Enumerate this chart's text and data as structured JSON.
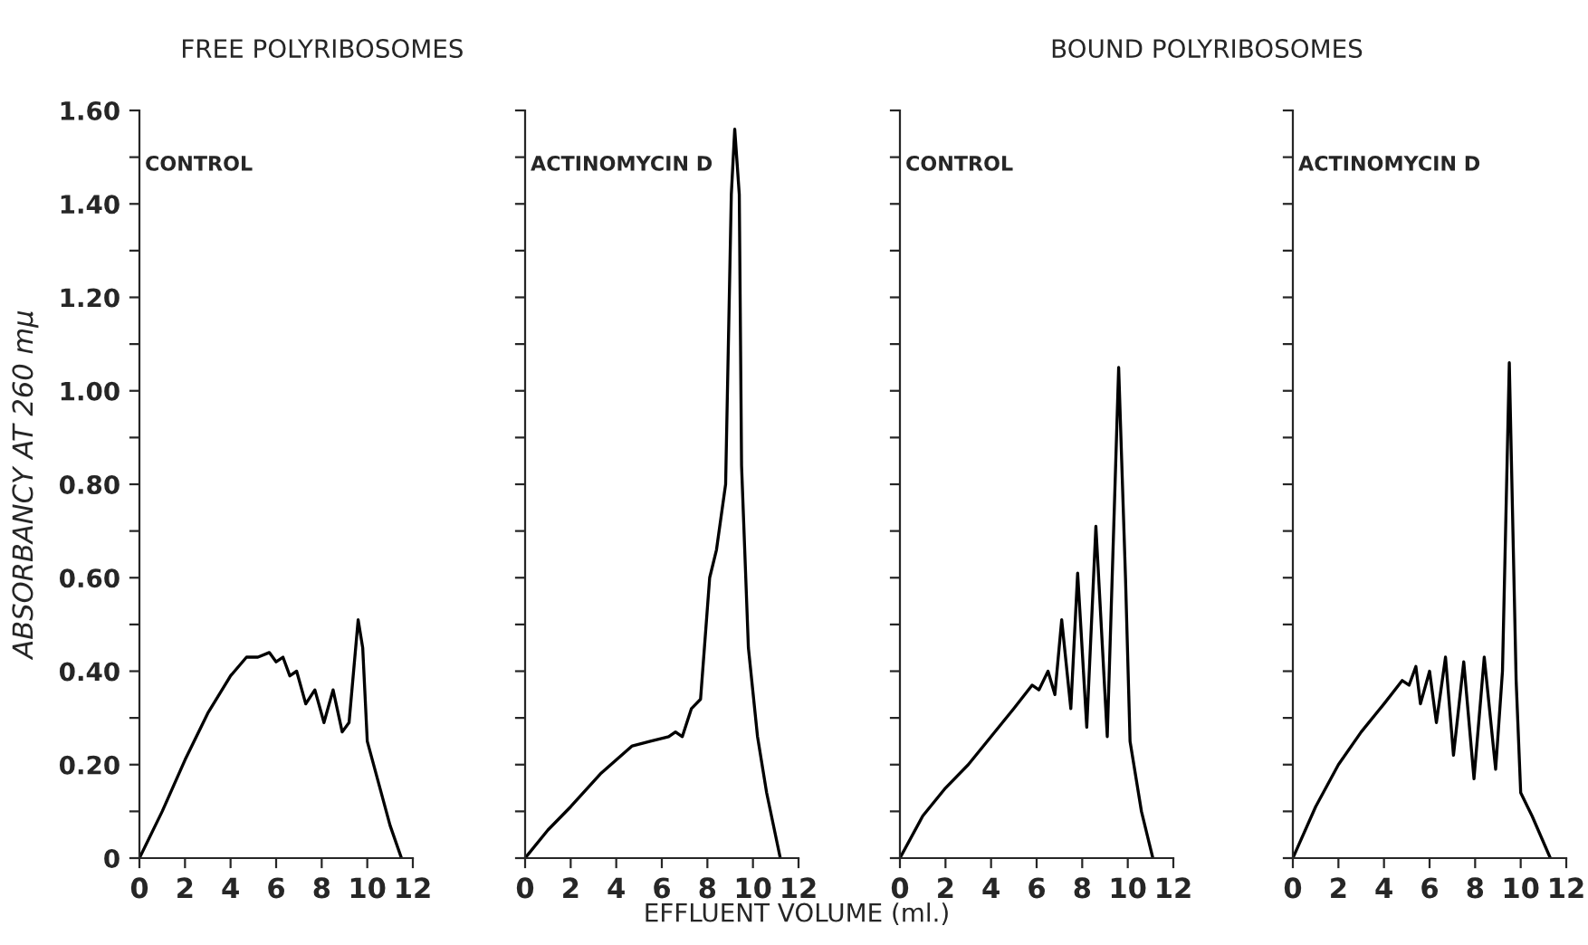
{
  "chart_data": [
    {
      "type": "line",
      "title": "FREE POLYRIBOSOMES",
      "ylabel": "ABSORBANCY AT 260 mμ",
      "annotations": [
        "CONTROL"
      ],
      "color": "#000000",
      "xlim": [
        0,
        12
      ],
      "xticks": [
        0,
        2,
        4,
        6,
        8,
        10,
        12
      ],
      "ylim": [
        0,
        1.6
      ],
      "yticks": [
        0,
        {
          "value": 0.1,
          "label": null
        },
        {
          "value": 0.2,
          "label": "0.20"
        },
        {
          "value": 0.3,
          "label": null
        },
        {
          "value": 0.4,
          "label": "0.40"
        },
        {
          "value": 0.5,
          "label": null
        },
        {
          "value": 0.6,
          "label": "0.60"
        },
        {
          "value": 0.7,
          "label": null
        },
        {
          "value": 0.8,
          "label": "0.80"
        },
        {
          "value": 0.9,
          "label": null
        },
        {
          "value": 1.0,
          "label": "1.00"
        },
        {
          "value": 1.1,
          "label": null
        },
        {
          "value": 1.2,
          "label": "1.20"
        },
        {
          "value": 1.3,
          "label": null
        },
        {
          "value": 1.4,
          "label": "1.40"
        },
        {
          "value": 1.5,
          "label": null
        },
        {
          "value": 1.6,
          "label": "1.60"
        }
      ],
      "x": [
        0,
        1,
        2,
        3,
        4,
        4.7,
        5.2,
        5.7,
        6.0,
        6.3,
        6.6,
        6.9,
        7.3,
        7.7,
        8.1,
        8.5,
        8.9,
        9.2,
        9.6,
        9.8,
        10.0,
        10.5,
        11.0,
        11.5
      ],
      "values": [
        0,
        0.1,
        0.21,
        0.31,
        0.39,
        0.43,
        0.43,
        0.44,
        0.42,
        0.43,
        0.39,
        0.4,
        0.33,
        0.36,
        0.29,
        0.36,
        0.27,
        0.29,
        0.51,
        0.45,
        0.25,
        0.16,
        0.07,
        0
      ]
    },
    {
      "type": "line",
      "xlabel": "EFFLUENT VOLUME (ml.)",
      "annotations": [
        "ACTINOMYCIN D"
      ],
      "color": "#000000",
      "xlim": [
        0,
        12
      ],
      "xticks": [
        0,
        2,
        4,
        6,
        8,
        10,
        12
      ],
      "ylim": [
        0,
        1.6
      ],
      "tick_labels": "x",
      "yticks": [
        0,
        0.1,
        0.2,
        0.3,
        0.4,
        0.5,
        0.6,
        0.7,
        0.8,
        0.9,
        1.0,
        1.1,
        1.2,
        1.3,
        1.4,
        1.5,
        1.6
      ],
      "x": [
        0,
        1,
        2,
        3.3,
        4.7,
        5.5,
        6.3,
        6.6,
        6.9,
        7.3,
        7.7,
        8.1,
        8.4,
        8.8,
        9.05,
        9.2,
        9.4,
        9.5,
        9.8,
        10.2,
        10.6,
        11.2
      ],
      "values": [
        0,
        0.06,
        0.11,
        0.18,
        0.24,
        0.25,
        0.26,
        0.27,
        0.26,
        0.32,
        0.34,
        0.6,
        0.66,
        0.8,
        1.42,
        1.56,
        1.42,
        0.84,
        0.45,
        0.26,
        0.14,
        0
      ]
    },
    {
      "type": "line",
      "title": "BOUND POLYRIBOSOMES",
      "annotations": [
        "CONTROL"
      ],
      "color": "#000000",
      "xlim": [
        0,
        12
      ],
      "xticks": [
        0,
        2,
        4,
        6,
        8,
        10,
        12
      ],
      "ylim": [
        0,
        1.6
      ],
      "tick_labels": "x",
      "yticks": [
        0,
        0.1,
        0.2,
        0.3,
        0.4,
        0.5,
        0.6,
        0.7,
        0.8,
        0.9,
        1.0,
        1.1,
        1.2,
        1.3,
        1.4,
        1.5,
        1.6
      ],
      "x": [
        0,
        1,
        2,
        3,
        4,
        5,
        5.8,
        6.1,
        6.5,
        6.8,
        7.1,
        7.5,
        7.8,
        8.2,
        8.6,
        9.1,
        9.6,
        9.9,
        10.1,
        10.6,
        11.1
      ],
      "values": [
        0,
        0.09,
        0.15,
        0.2,
        0.26,
        0.32,
        0.37,
        0.36,
        0.4,
        0.35,
        0.51,
        0.32,
        0.61,
        0.28,
        0.71,
        0.26,
        1.05,
        0.6,
        0.25,
        0.1,
        0
      ]
    },
    {
      "type": "line",
      "annotations": [
        "ACTINOMYCIN D"
      ],
      "color": "#000000",
      "xlim": [
        0,
        12
      ],
      "xticks": [
        0,
        2,
        4,
        6,
        8,
        10,
        12
      ],
      "ylim": [
        0,
        1.6
      ],
      "tick_labels": "x",
      "yticks": [
        0,
        0.1,
        0.2,
        0.3,
        0.4,
        0.5,
        0.6,
        0.7,
        0.8,
        0.9,
        1.0,
        1.1,
        1.2,
        1.3,
        1.4,
        1.5,
        1.6
      ],
      "x": [
        0,
        1,
        2,
        3,
        4,
        4.8,
        5.1,
        5.4,
        5.6,
        6.0,
        6.3,
        6.7,
        7.05,
        7.5,
        7.95,
        8.4,
        8.9,
        9.2,
        9.5,
        9.8,
        10.0,
        10.3,
        10.5,
        11.3
      ],
      "values": [
        0,
        0.11,
        0.2,
        0.27,
        0.33,
        0.38,
        0.37,
        0.41,
        0.33,
        0.4,
        0.29,
        0.43,
        0.22,
        0.42,
        0.17,
        0.43,
        0.19,
        0.4,
        1.06,
        0.38,
        0.14,
        0.11,
        0.09,
        0
      ]
    }
  ]
}
